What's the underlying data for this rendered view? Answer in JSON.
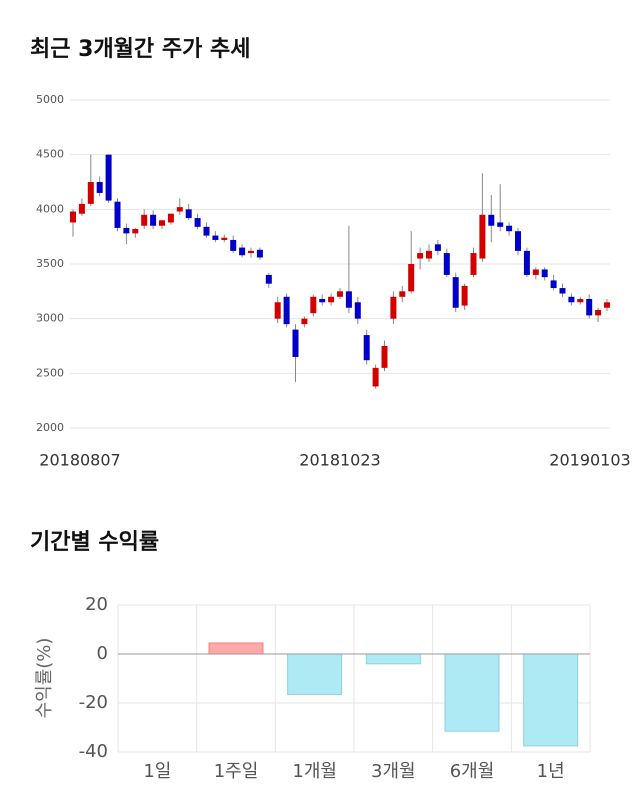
{
  "chart_data": [
    {
      "type": "candlestick",
      "title": "최근 3개월간 주가 추세",
      "categories": [
        "20180807",
        null,
        null,
        null,
        null,
        null,
        null,
        null,
        null,
        null,
        null,
        null,
        null,
        null,
        null,
        null,
        null,
        null,
        null,
        null,
        null,
        null,
        null,
        null,
        null,
        null,
        null,
        null,
        null,
        null,
        "20181023",
        null,
        null,
        null,
        null,
        null,
        null,
        null,
        null,
        null,
        null,
        null,
        null,
        null,
        null,
        null,
        null,
        null,
        null,
        null,
        null,
        null,
        null,
        null,
        null,
        null,
        null,
        null,
        null,
        null,
        "20190103"
      ],
      "open": [
        3880,
        3960,
        4050,
        4250,
        4500,
        4070,
        3830,
        3780,
        3850,
        3950,
        3850,
        3880,
        3980,
        4000,
        3920,
        3840,
        3760,
        3720,
        3720,
        3650,
        3600,
        3630,
        3400,
        3000,
        3200,
        2900,
        2950,
        3050,
        3180,
        3150,
        3200,
        3250,
        3150,
        2850,
        2380,
        2550,
        3000,
        3200,
        3250,
        3550,
        3550,
        3680,
        3600,
        3380,
        3120,
        3400,
        3550,
        3950,
        3880,
        3850,
        3800,
        3620,
        3400,
        3450,
        3350,
        3280,
        3200,
        3150,
        3180,
        3030,
        3100
      ],
      "high": [
        4000,
        4100,
        4500,
        4300,
        4500,
        4100,
        3870,
        3830,
        4000,
        3990,
        3900,
        3960,
        4100,
        4050,
        3960,
        3880,
        3800,
        3770,
        3760,
        3680,
        3650,
        3650,
        3420,
        3200,
        3230,
        2950,
        3020,
        3220,
        3220,
        3230,
        3280,
        3850,
        3200,
        2900,
        2580,
        2800,
        3250,
        3300,
        3800,
        3650,
        3680,
        3720,
        3640,
        3420,
        3320,
        3650,
        4330,
        4130,
        4230,
        3880,
        3830,
        3650,
        3470,
        3470,
        3400,
        3320,
        3230,
        3200,
        3220,
        3100,
        3180
      ],
      "low": [
        3750,
        3940,
        4030,
        4120,
        4060,
        3800,
        3680,
        3740,
        3820,
        3820,
        3820,
        3860,
        3950,
        3900,
        3820,
        3740,
        3700,
        3700,
        3600,
        3560,
        3560,
        3540,
        3280,
        2960,
        2920,
        2420,
        2920,
        3020,
        3120,
        3120,
        3180,
        3050,
        2950,
        2580,
        2360,
        2520,
        2950,
        3150,
        3230,
        3450,
        3520,
        3580,
        3380,
        3060,
        3080,
        3380,
        3520,
        3700,
        3800,
        3760,
        3580,
        3380,
        3360,
        3350,
        3260,
        3200,
        3120,
        3130,
        3000,
        2970,
        3070
      ],
      "close": [
        3980,
        4050,
        4250,
        4150,
        4080,
        3830,
        3780,
        3820,
        3950,
        3850,
        3900,
        3960,
        4020,
        3920,
        3840,
        3760,
        3720,
        3740,
        3620,
        3580,
        3620,
        3560,
        3320,
        3150,
        2950,
        2650,
        3000,
        3200,
        3150,
        3200,
        3250,
        3100,
        3000,
        2620,
        2550,
        2750,
        3200,
        3250,
        3500,
        3600,
        3620,
        3620,
        3400,
        3100,
        3300,
        3600,
        3950,
        3850,
        3840,
        3800,
        3620,
        3400,
        3450,
        3380,
        3280,
        3230,
        3150,
        3180,
        3030,
        3080,
        3150
      ],
      "up_color": "#d40000",
      "down_color": "#0000c8",
      "ylim": [
        2000,
        5000
      ],
      "yticks": [
        2000,
        2500,
        3000,
        3500,
        4000,
        4500,
        5000
      ],
      "grid": true
    },
    {
      "type": "bar",
      "title": "기간별 수익률",
      "ylabel": "수익률(%)",
      "categories": [
        "1일",
        "1주일",
        "1개월",
        "3개월",
        "6개월",
        "1년"
      ],
      "values": [
        0,
        4.5,
        -16.5,
        -4,
        -31.5,
        -37.5
      ],
      "positive_color": "#ffa8a8",
      "negative_color": "#aeeaf4",
      "ylim": [
        -40,
        20
      ],
      "yticks": [
        20,
        0,
        -20,
        -40
      ],
      "grid": true
    }
  ]
}
